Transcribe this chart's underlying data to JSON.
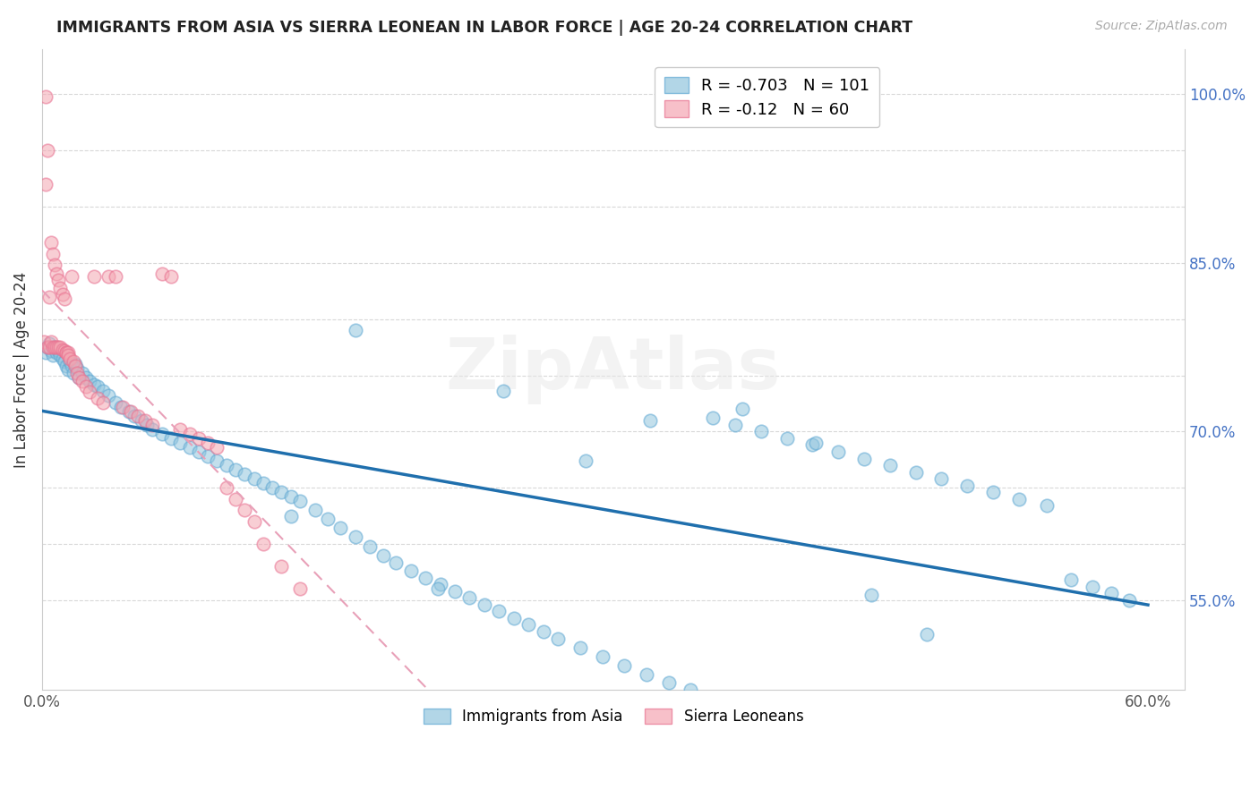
{
  "title": "IMMIGRANTS FROM ASIA VS SIERRA LEONEAN IN LABOR FORCE | AGE 20-24 CORRELATION CHART",
  "source": "Source: ZipAtlas.com",
  "ylabel": "In Labor Force | Age 20-24",
  "xlim": [
    0.0,
    0.62
  ],
  "ylim": [
    0.47,
    1.04
  ],
  "blue_R": -0.703,
  "blue_N": 101,
  "pink_R": -0.12,
  "pink_N": 60,
  "blue_color": "#92c5de",
  "pink_color": "#f4a6b2",
  "blue_line_color": "#1f6fad",
  "pink_line_color": "#e8a0b0",
  "legend_label_blue": "Immigrants from Asia",
  "legend_label_pink": "Sierra Leoneans",
  "blue_scatter_x": [
    0.002,
    0.003,
    0.004,
    0.005,
    0.006,
    0.007,
    0.008,
    0.009,
    0.01,
    0.011,
    0.012,
    0.013,
    0.014,
    0.015,
    0.016,
    0.017,
    0.018,
    0.019,
    0.02,
    0.022,
    0.024,
    0.026,
    0.028,
    0.03,
    0.033,
    0.036,
    0.04,
    0.043,
    0.047,
    0.05,
    0.054,
    0.057,
    0.06,
    0.065,
    0.07,
    0.075,
    0.08,
    0.085,
    0.09,
    0.095,
    0.1,
    0.105,
    0.11,
    0.115,
    0.12,
    0.125,
    0.13,
    0.135,
    0.14,
    0.148,
    0.155,
    0.162,
    0.17,
    0.178,
    0.185,
    0.192,
    0.2,
    0.208,
    0.216,
    0.224,
    0.232,
    0.24,
    0.248,
    0.256,
    0.264,
    0.272,
    0.28,
    0.292,
    0.304,
    0.316,
    0.328,
    0.34,
    0.352,
    0.364,
    0.376,
    0.39,
    0.404,
    0.418,
    0.432,
    0.446,
    0.46,
    0.474,
    0.488,
    0.502,
    0.516,
    0.53,
    0.545,
    0.558,
    0.57,
    0.58,
    0.59,
    0.17,
    0.33,
    0.25,
    0.42,
    0.38,
    0.295,
    0.45,
    0.215,
    0.48,
    0.135
  ],
  "blue_scatter_y": [
    0.77,
    0.775,
    0.778,
    0.772,
    0.768,
    0.775,
    0.77,
    0.772,
    0.768,
    0.765,
    0.762,
    0.758,
    0.755,
    0.762,
    0.758,
    0.752,
    0.76,
    0.756,
    0.748,
    0.752,
    0.748,
    0.745,
    0.742,
    0.74,
    0.736,
    0.732,
    0.726,
    0.722,
    0.718,
    0.714,
    0.71,
    0.706,
    0.702,
    0.698,
    0.694,
    0.69,
    0.686,
    0.682,
    0.678,
    0.674,
    0.67,
    0.666,
    0.662,
    0.658,
    0.654,
    0.65,
    0.646,
    0.642,
    0.638,
    0.63,
    0.622,
    0.614,
    0.606,
    0.598,
    0.59,
    0.583,
    0.576,
    0.57,
    0.564,
    0.558,
    0.552,
    0.546,
    0.54,
    0.534,
    0.528,
    0.522,
    0.516,
    0.508,
    0.5,
    0.492,
    0.484,
    0.477,
    0.47,
    0.712,
    0.706,
    0.7,
    0.694,
    0.688,
    0.682,
    0.676,
    0.67,
    0.664,
    0.658,
    0.652,
    0.646,
    0.64,
    0.634,
    0.568,
    0.562,
    0.556,
    0.55,
    0.79,
    0.71,
    0.736,
    0.69,
    0.72,
    0.674,
    0.555,
    0.56,
    0.52,
    0.625
  ],
  "pink_scatter_x": [
    0.001,
    0.002,
    0.002,
    0.003,
    0.003,
    0.004,
    0.004,
    0.005,
    0.005,
    0.006,
    0.006,
    0.007,
    0.007,
    0.008,
    0.008,
    0.009,
    0.009,
    0.01,
    0.01,
    0.011,
    0.011,
    0.012,
    0.012,
    0.013,
    0.013,
    0.014,
    0.014,
    0.015,
    0.016,
    0.017,
    0.018,
    0.019,
    0.02,
    0.022,
    0.024,
    0.026,
    0.028,
    0.03,
    0.033,
    0.036,
    0.04,
    0.044,
    0.048,
    0.052,
    0.056,
    0.06,
    0.065,
    0.07,
    0.075,
    0.08,
    0.085,
    0.09,
    0.095,
    0.1,
    0.105,
    0.11,
    0.115,
    0.12,
    0.13,
    0.14
  ],
  "pink_scatter_y": [
    0.78,
    0.998,
    0.92,
    0.95,
    0.775,
    0.82,
    0.775,
    0.78,
    0.868,
    0.775,
    0.858,
    0.775,
    0.848,
    0.775,
    0.84,
    0.775,
    0.835,
    0.775,
    0.828,
    0.773,
    0.822,
    0.772,
    0.818,
    0.77,
    0.77,
    0.77,
    0.768,
    0.765,
    0.838,
    0.762,
    0.758,
    0.752,
    0.748,
    0.745,
    0.74,
    0.735,
    0.838,
    0.73,
    0.726,
    0.838,
    0.838,
    0.722,
    0.718,
    0.714,
    0.71,
    0.706,
    0.84,
    0.838,
    0.702,
    0.698,
    0.694,
    0.69,
    0.686,
    0.65,
    0.64,
    0.63,
    0.62,
    0.6,
    0.58,
    0.56
  ]
}
